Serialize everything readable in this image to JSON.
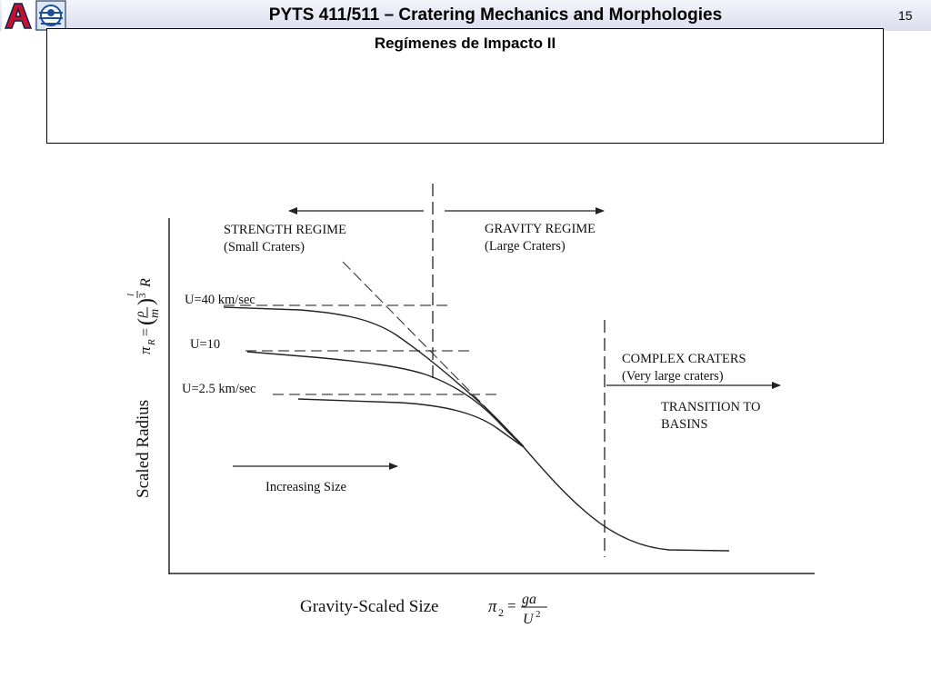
{
  "header": {
    "title": "PYTS 411/511 – Cratering Mechanics and Morphologies",
    "slide_number": "15"
  },
  "subtitle": "Regímenes de Impacto II",
  "figure": {
    "strength_regime": "STRENGTH REGIME",
    "strength_sub": "(Small Craters)",
    "gravity_regime": "GRAVITY REGIME",
    "gravity_sub": "(Large Craters)",
    "complex_craters": "COMPLEX CRATERS",
    "complex_sub": "(Very large craters)",
    "transition_line1": "TRANSITION TO",
    "transition_line2": "BASINS",
    "u40": "U=40 km/sec",
    "u10": "U=10",
    "u25": "U=2.5 km/sec",
    "increasing_size": "Increasing Size",
    "y_axis_label": "Scaled Radius",
    "x_axis_label": "Gravity-Scaled Size"
  }
}
